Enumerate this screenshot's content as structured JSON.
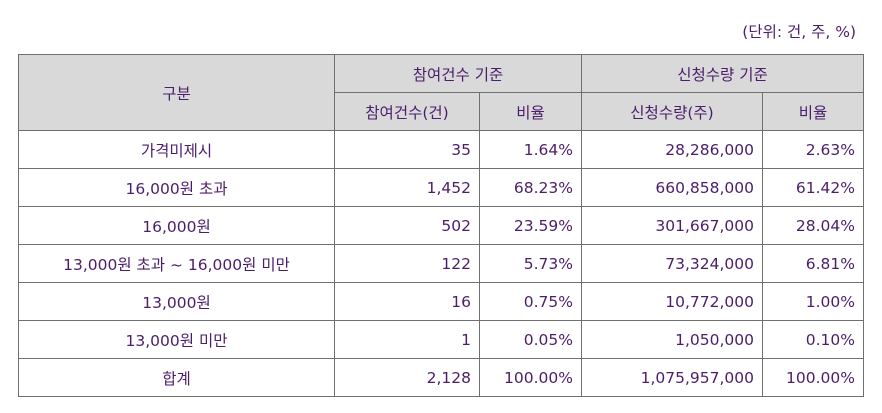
{
  "unit_note": "(단위: 건, 주, %)",
  "header": {
    "category": "구분",
    "group_participation": "참여건수 기준",
    "group_subscription": "신청수량 기준",
    "col_participation_count": "참여건수(건)",
    "col_participation_ratio": "비율",
    "col_subscription_qty": "신청수량(주)",
    "col_subscription_ratio": "비율"
  },
  "rows": [
    {
      "label": "가격미제시",
      "count": "35",
      "count_ratio": "1.64%",
      "qty": "28,286,000",
      "qty_ratio": "2.63%"
    },
    {
      "label": "16,000원 초과",
      "count": "1,452",
      "count_ratio": "68.23%",
      "qty": "660,858,000",
      "qty_ratio": "61.42%"
    },
    {
      "label": "16,000원",
      "count": "502",
      "count_ratio": "23.59%",
      "qty": "301,667,000",
      "qty_ratio": "28.04%"
    },
    {
      "label": "13,000원 초과 ~ 16,000원 미만",
      "count": "122",
      "count_ratio": "5.73%",
      "qty": "73,324,000",
      "qty_ratio": "6.81%"
    },
    {
      "label": "13,000원",
      "count": "16",
      "count_ratio": "0.75%",
      "qty": "10,772,000",
      "qty_ratio": "1.00%"
    },
    {
      "label": "13,000원 미만",
      "count": "1",
      "count_ratio": "0.05%",
      "qty": "1,050,000",
      "qty_ratio": "0.10%"
    },
    {
      "label": "합계",
      "count": "2,128",
      "count_ratio": "100.00%",
      "qty": "1,075,957,000",
      "qty_ratio": "100.00%"
    }
  ]
}
